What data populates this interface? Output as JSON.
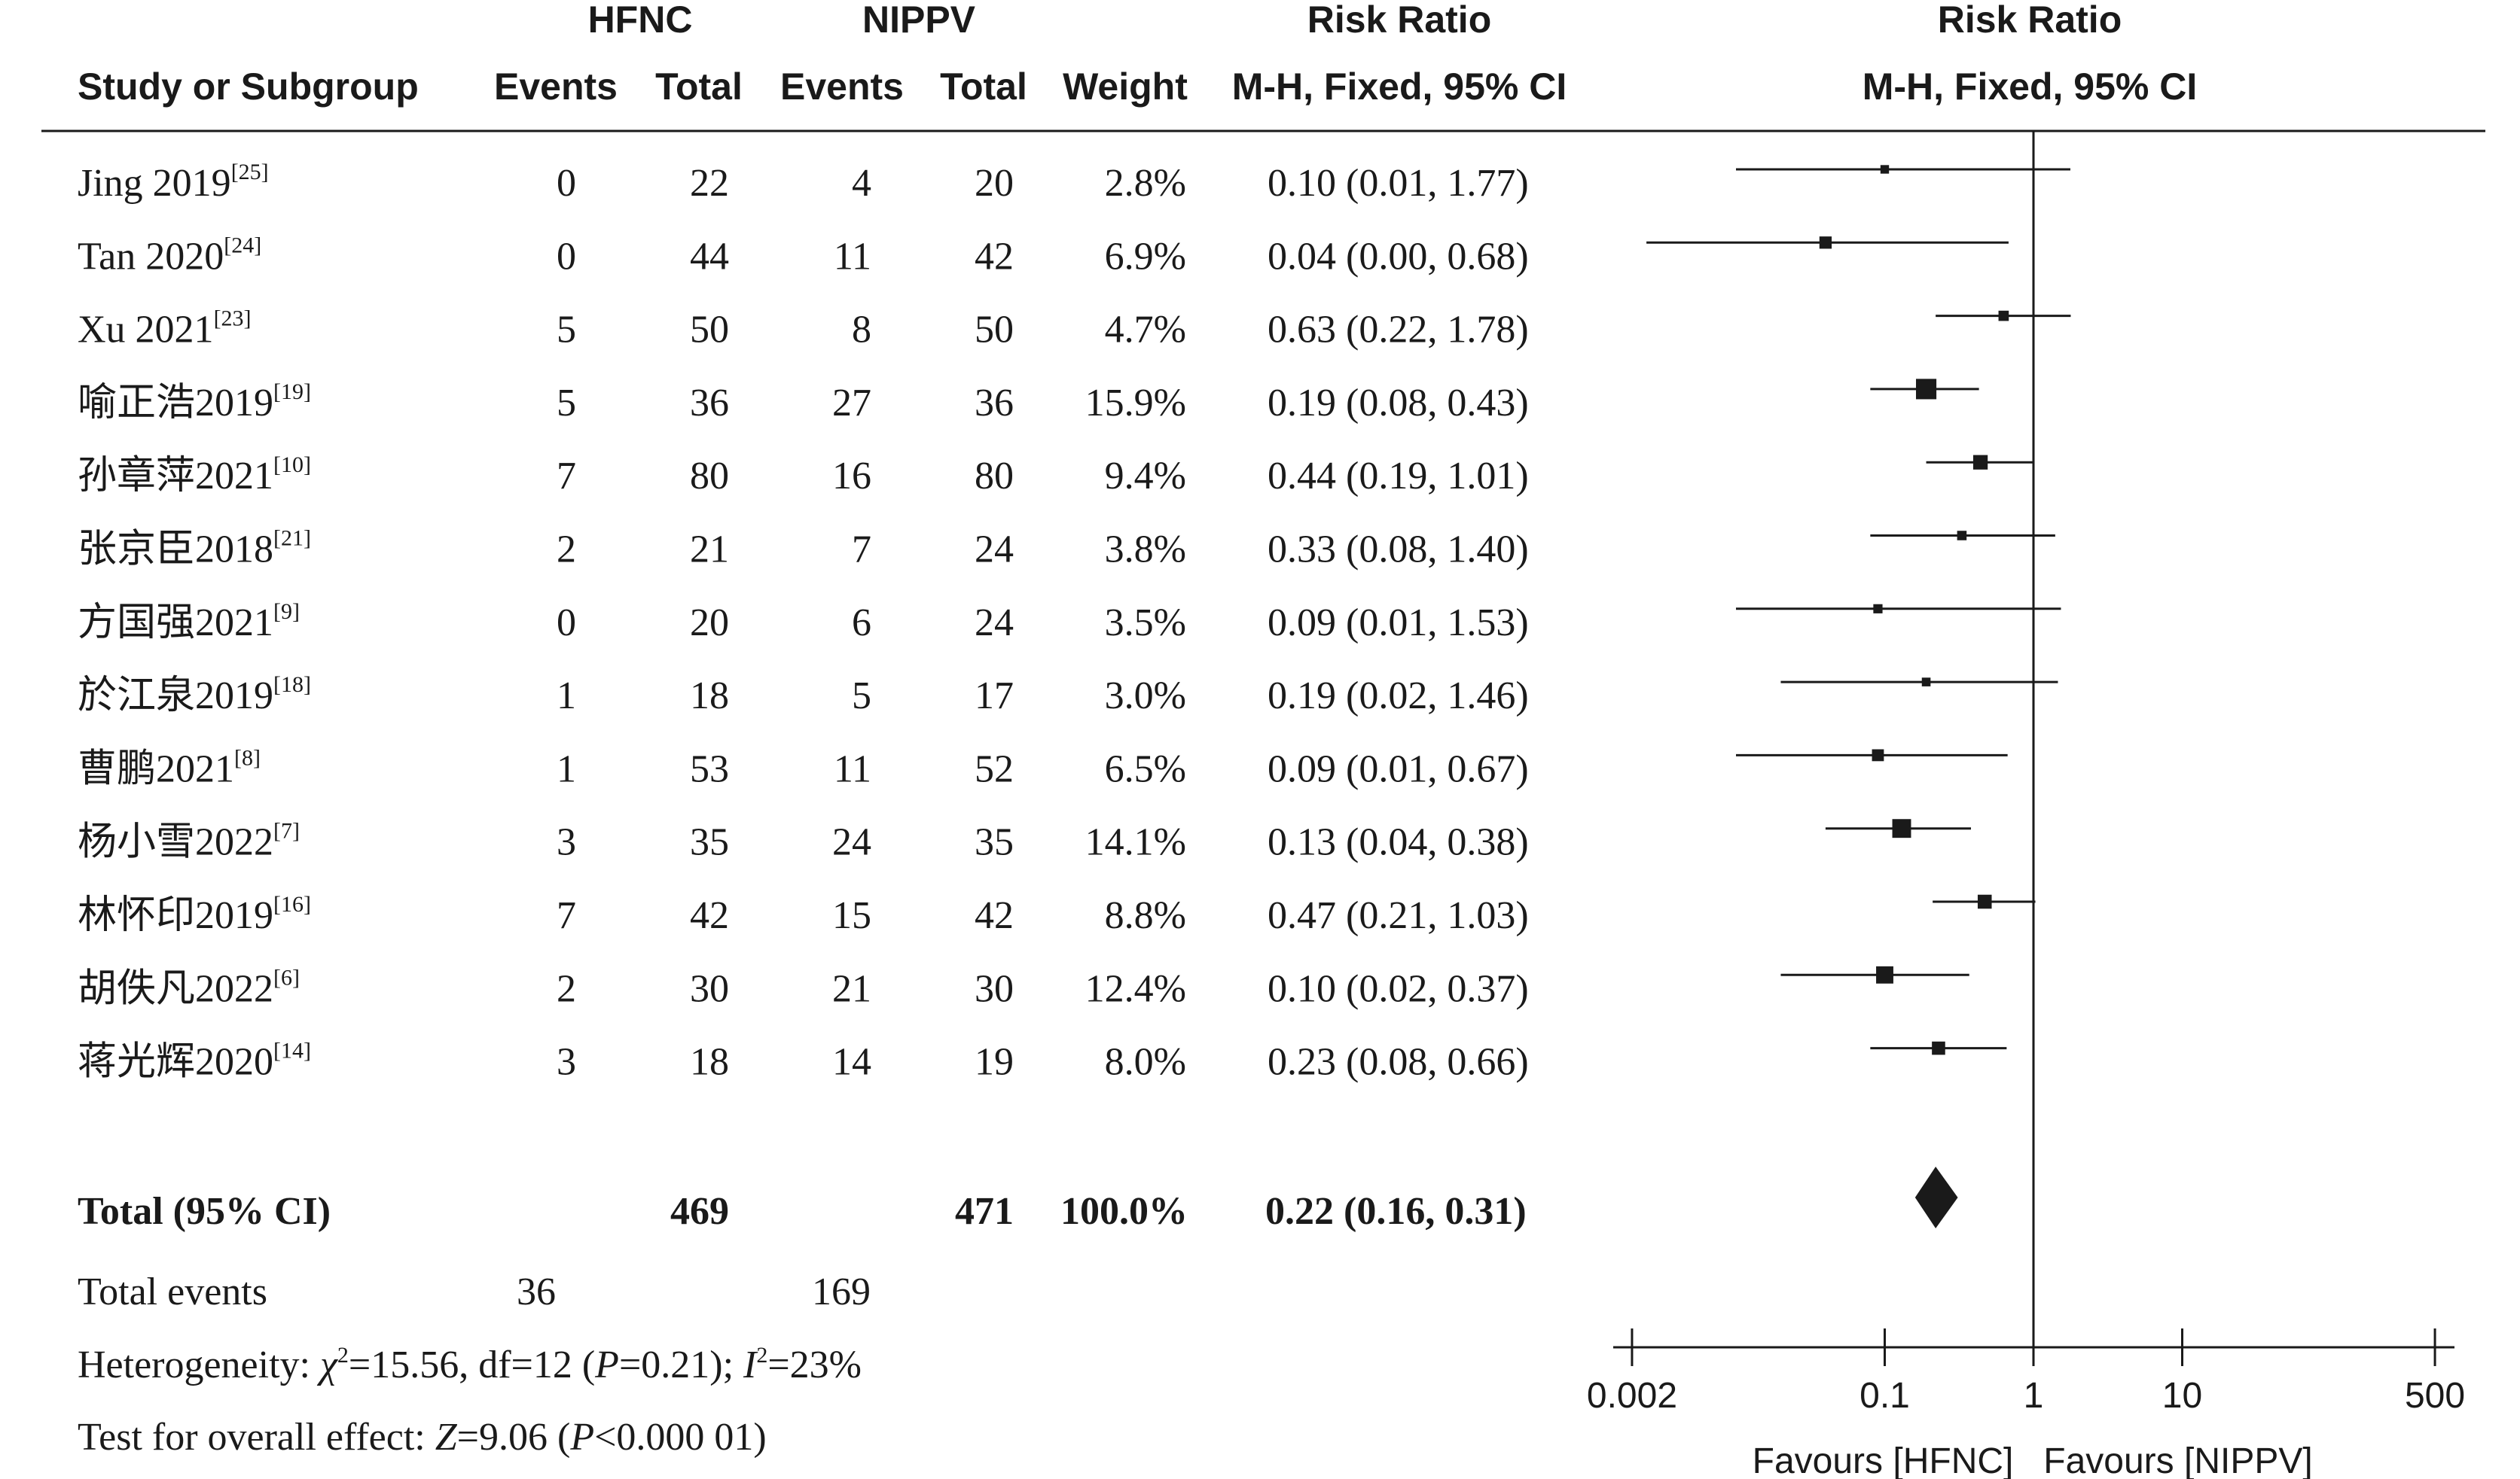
{
  "headers": {
    "group1": "HFNC",
    "group2": "NIPPV",
    "rr_title": "Risk Ratio",
    "rr_method": "M-H, Fixed, 95% CI",
    "plot_title": "Risk Ratio",
    "plot_method": "M-H, Fixed, 95% CI",
    "study": "Study or Subgroup",
    "events1": "Events",
    "total1": "Total",
    "events2": "Events",
    "total2": "Total",
    "weight": "Weight"
  },
  "studies": [
    {
      "name": "Jing 2019",
      "ref": "[25]",
      "e1": "0",
      "t1": "22",
      "e2": "4",
      "t2": "20",
      "weight": "2.8%",
      "ci_text": "0.10 (0.01, 1.77)",
      "rr": 0.1,
      "lo": 0.01,
      "hi": 1.77,
      "w": 2.8
    },
    {
      "name": "Tan 2020",
      "ref": "[24]",
      "e1": "0",
      "t1": "44",
      "e2": "11",
      "t2": "42",
      "weight": "6.9%",
      "ci_text": "0.04 (0.00, 0.68)",
      "rr": 0.04,
      "lo": 0.0025,
      "hi": 0.68,
      "w": 6.9
    },
    {
      "name": "Xu 2021",
      "ref": "[23]",
      "e1": "5",
      "t1": "50",
      "e2": "8",
      "t2": "50",
      "weight": "4.7%",
      "ci_text": "0.63 (0.22, 1.78)",
      "rr": 0.63,
      "lo": 0.22,
      "hi": 1.78,
      "w": 4.7
    },
    {
      "name": "喻正浩2019",
      "ref": "[19]",
      "e1": "5",
      "t1": "36",
      "e2": "27",
      "t2": "36",
      "weight": "15.9%",
      "ci_text": "0.19 (0.08, 0.43)",
      "rr": 0.19,
      "lo": 0.08,
      "hi": 0.43,
      "w": 15.9
    },
    {
      "name": "孙章萍2021",
      "ref": "[10]",
      "e1": "7",
      "t1": "80",
      "e2": "16",
      "t2": "80",
      "weight": "9.4%",
      "ci_text": "0.44 (0.19, 1.01)",
      "rr": 0.44,
      "lo": 0.19,
      "hi": 1.01,
      "w": 9.4
    },
    {
      "name": "张京臣2018",
      "ref": "[21]",
      "e1": "2",
      "t1": "21",
      "e2": "7",
      "t2": "24",
      "weight": "3.8%",
      "ci_text": "0.33 (0.08, 1.40)",
      "rr": 0.33,
      "lo": 0.08,
      "hi": 1.4,
      "w": 3.8
    },
    {
      "name": "方国强2021",
      "ref": "[9]",
      "e1": "0",
      "t1": "20",
      "e2": "6",
      "t2": "24",
      "weight": "3.5%",
      "ci_text": "0.09 (0.01, 1.53)",
      "rr": 0.09,
      "lo": 0.01,
      "hi": 1.53,
      "w": 3.5
    },
    {
      "name": "於江泉2019",
      "ref": "[18]",
      "e1": "1",
      "t1": "18",
      "e2": "5",
      "t2": "17",
      "weight": "3.0%",
      "ci_text": "0.19 (0.02, 1.46)",
      "rr": 0.19,
      "lo": 0.02,
      "hi": 1.46,
      "w": 3.0
    },
    {
      "name": "曹鹏2021",
      "ref": "[8]",
      "e1": "1",
      "t1": "53",
      "e2": "11",
      "t2": "52",
      "weight": "6.5%",
      "ci_text": "0.09 (0.01, 0.67)",
      "rr": 0.09,
      "lo": 0.01,
      "hi": 0.67,
      "w": 6.5
    },
    {
      "name": "杨小雪2022",
      "ref": "[7]",
      "e1": "3",
      "t1": "35",
      "e2": "24",
      "t2": "35",
      "weight": "14.1%",
      "ci_text": "0.13 (0.04, 0.38)",
      "rr": 0.13,
      "lo": 0.04,
      "hi": 0.38,
      "w": 14.1
    },
    {
      "name": "林怀印2019",
      "ref": "[16]",
      "e1": "7",
      "t1": "42",
      "e2": "15",
      "t2": "42",
      "weight": "8.8%",
      "ci_text": "0.47 (0.21, 1.03)",
      "rr": 0.47,
      "lo": 0.21,
      "hi": 1.03,
      "w": 8.8
    },
    {
      "name": "胡佚凡2022",
      "ref": "[6]",
      "e1": "2",
      "t1": "30",
      "e2": "21",
      "t2": "30",
      "weight": "12.4%",
      "ci_text": "0.10 (0.02, 0.37)",
      "rr": 0.1,
      "lo": 0.02,
      "hi": 0.37,
      "w": 12.4
    },
    {
      "name": "蒋光辉2020",
      "ref": "[14]",
      "e1": "3",
      "t1": "18",
      "e2": "14",
      "t2": "19",
      "weight": "8.0%",
      "ci_text": "0.23 (0.08, 0.66)",
      "rr": 0.23,
      "lo": 0.08,
      "hi": 0.66,
      "w": 8.0
    }
  ],
  "total": {
    "label": "Total (95% CI)",
    "t1": "469",
    "t2": "471",
    "weight": "100.0%",
    "ci_text": "0.22 (0.16, 0.31)",
    "rr": 0.22,
    "lo": 0.16,
    "hi": 0.31
  },
  "total_events": {
    "label": "Total events",
    "e1": "36",
    "e2": "169"
  },
  "heterogeneity": {
    "prefix": "Heterogeneity: ",
    "chi_sym": "χ",
    "chi_sup": "2",
    "chi_val": "=15.56, df=12 (",
    "p_sym": "P",
    "p_val": "=0.21); ",
    "i_sym": "I",
    "i_sup": "2",
    "i_val": "=23%"
  },
  "overall_effect": {
    "prefix": "Test for overall effect: ",
    "z_sym": "Z",
    "z_val": "=9.06 (",
    "p_sym": "P",
    "p_val": "<0.000 01)"
  },
  "axis": {
    "ticks": [
      0.002,
      0.1,
      1,
      10,
      500
    ],
    "tick_labels": [
      "0.002",
      "0.1",
      "1",
      "10",
      "500"
    ],
    "scale": "log",
    "favours_left": "Favours [HFNC]",
    "favours_right": "Favours [NIPPV]"
  },
  "chart_data": {
    "type": "forest",
    "title": "Risk Ratio",
    "subtitle": "M-H, Fixed, 95% CI",
    "xscale": "log",
    "xlim": [
      0.002,
      500
    ],
    "reference_line": 1,
    "studies": [
      "Jing 2019",
      "Tan 2020",
      "Xu 2021",
      "喻正浩2019",
      "孙章萍2021",
      "张京臣2018",
      "方国强2021",
      "於江泉2019",
      "曹鹏2021",
      "杨小雪2022",
      "林怀印2019",
      "胡佚凡2022",
      "蒋光辉2020"
    ],
    "rr": [
      0.1,
      0.04,
      0.63,
      0.19,
      0.44,
      0.33,
      0.09,
      0.19,
      0.09,
      0.13,
      0.47,
      0.1,
      0.23
    ],
    "ci_low": [
      0.01,
      0.0,
      0.22,
      0.08,
      0.19,
      0.08,
      0.01,
      0.02,
      0.01,
      0.04,
      0.21,
      0.02,
      0.08
    ],
    "ci_high": [
      1.77,
      0.68,
      1.78,
      0.43,
      1.01,
      1.4,
      1.53,
      1.46,
      0.67,
      0.38,
      1.03,
      0.37,
      0.66
    ],
    "weights": [
      2.8,
      6.9,
      4.7,
      15.9,
      9.4,
      3.8,
      3.5,
      3.0,
      6.5,
      14.1,
      8.8,
      12.4,
      8.0
    ],
    "pooled": {
      "rr": 0.22,
      "ci_low": 0.16,
      "ci_high": 0.31
    }
  }
}
